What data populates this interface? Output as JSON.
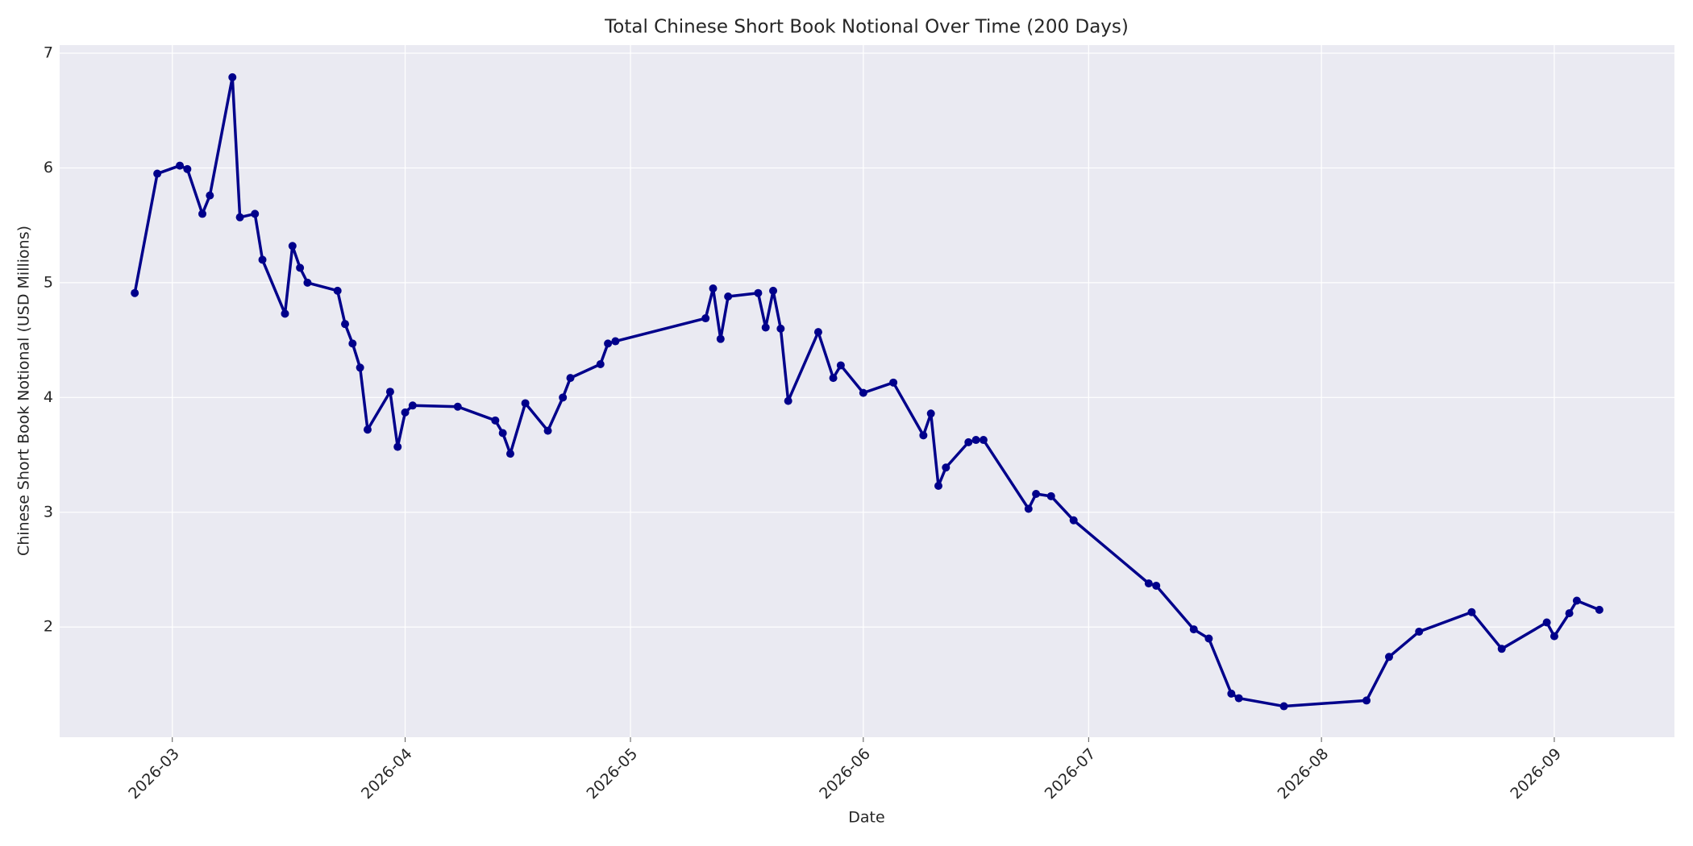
{
  "chart_data": {
    "type": "line",
    "title": "Total Chinese Short Book Notional Over Time (200 Days)",
    "x_label": "Date",
    "y_label": "Chinese Short Book Notional (USD Millions)",
    "color": "#00008b",
    "grid": true,
    "x": [
      "2026-02-24",
      "2026-02-27",
      "2026-03-02",
      "2026-03-03",
      "2026-03-05",
      "2026-03-06",
      "2026-03-09",
      "2026-03-10",
      "2026-03-12",
      "2026-03-13",
      "2026-03-16",
      "2026-03-17",
      "2026-03-18",
      "2026-03-19",
      "2026-03-23",
      "2026-03-24",
      "2026-03-25",
      "2026-03-26",
      "2026-03-27",
      "2026-03-30",
      "2026-03-31",
      "2026-04-01",
      "2026-04-02",
      "2026-04-08",
      "2026-04-13",
      "2026-04-14",
      "2026-04-15",
      "2026-04-17",
      "2026-04-20",
      "2026-04-22",
      "2026-04-23",
      "2026-04-27",
      "2026-04-28",
      "2026-04-29",
      "2026-05-11",
      "2026-05-12",
      "2026-05-13",
      "2026-05-14",
      "2026-05-18",
      "2026-05-19",
      "2026-05-20",
      "2026-05-21",
      "2026-05-22",
      "2026-05-26",
      "2026-05-28",
      "2026-05-29",
      "2026-06-01",
      "2026-06-05",
      "2026-06-09",
      "2026-06-10",
      "2026-06-11",
      "2026-06-12",
      "2026-06-15",
      "2026-06-16",
      "2026-06-17",
      "2026-06-23",
      "2026-06-24",
      "2026-06-26",
      "2026-06-29",
      "2026-07-09",
      "2026-07-10",
      "2026-07-15",
      "2026-07-17",
      "2026-07-20",
      "2026-07-21",
      "2026-07-27",
      "2026-08-07",
      "2026-08-10",
      "2026-08-14",
      "2026-08-21",
      "2026-08-25",
      "2026-08-31",
      "2026-09-01",
      "2026-09-03",
      "2026-09-04",
      "2026-09-07"
    ],
    "values": [
      4.91,
      5.95,
      6.02,
      5.99,
      5.6,
      5.76,
      6.79,
      5.57,
      5.6,
      5.2,
      4.73,
      5.32,
      5.13,
      5.0,
      4.93,
      4.64,
      4.47,
      4.26,
      3.72,
      4.05,
      3.57,
      3.87,
      3.93,
      3.92,
      3.8,
      3.69,
      3.51,
      3.95,
      3.71,
      4.0,
      4.17,
      4.29,
      4.47,
      4.49,
      4.69,
      4.95,
      4.51,
      4.88,
      4.91,
      4.61,
      4.93,
      4.6,
      3.97,
      4.57,
      4.17,
      4.28,
      4.04,
      4.13,
      3.67,
      3.86,
      3.23,
      3.39,
      3.61,
      3.63,
      3.63,
      3.03,
      3.16,
      3.14,
      2.93,
      2.38,
      2.36,
      1.98,
      1.9,
      1.42,
      1.38,
      1.31,
      1.36,
      1.74,
      1.96,
      2.13,
      1.81,
      2.04,
      1.92,
      2.12,
      2.23,
      2.15
    ],
    "xlim": [
      "2026-02-14",
      "2026-09-17"
    ],
    "xticks": [
      {
        "value": "2026-03-01",
        "label": "2026-03"
      },
      {
        "value": "2026-04-01",
        "label": "2026-04"
      },
      {
        "value": "2026-05-01",
        "label": "2026-05"
      },
      {
        "value": "2026-06-01",
        "label": "2026-06"
      },
      {
        "value": "2026-07-01",
        "label": "2026-07"
      },
      {
        "value": "2026-08-01",
        "label": "2026-08"
      },
      {
        "value": "2026-09-01",
        "label": "2026-09"
      }
    ],
    "ylim": [
      1.04,
      7.07
    ],
    "yticks": [
      2,
      3,
      4,
      5,
      6,
      7
    ]
  }
}
